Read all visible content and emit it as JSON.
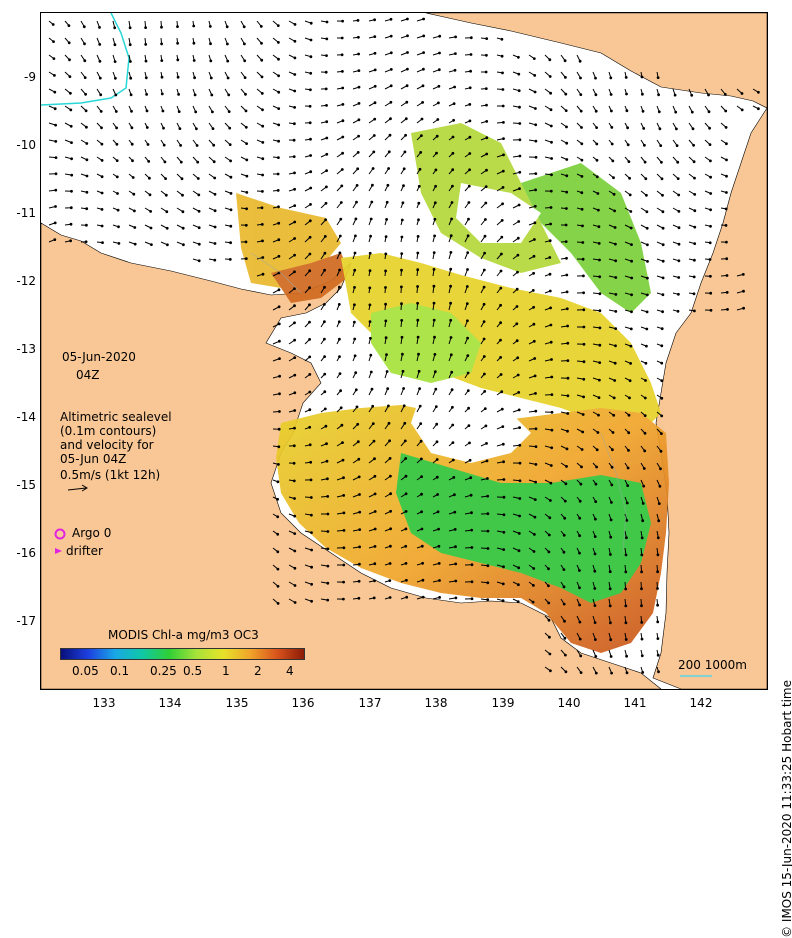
{
  "map": {
    "date": "05-Jun-2020",
    "time": "04Z",
    "legend_lines": [
      "Altimetric sealevel",
      "(0.1m contours)",
      "and velocity for",
      "05-Jun 04Z",
      "0.5m/s (1kt 12h)"
    ],
    "argo_label": "Argo 0",
    "drifter_label": "drifter",
    "colorbar_title": "MODIS Chl-a mg/m3 OC3",
    "colorbar_ticks": [
      "0.05",
      "0.1",
      "0.25",
      "0.5",
      "1",
      "2",
      "4"
    ],
    "scale_label": "200  1000m",
    "credit": "© IMOS 15-Jun-2020 11:33:25 Hobart time",
    "lat_ticks": [
      "-9",
      "-10",
      "-11",
      "-12",
      "-13",
      "-14",
      "-15",
      "-16",
      "-17"
    ],
    "lon_ticks": [
      "133",
      "134",
      "135",
      "136",
      "137",
      "138",
      "139",
      "140",
      "141",
      "142"
    ],
    "colors": {
      "land": "#f9c795",
      "chl_high": "#c8501a",
      "chl_mid": "#e8c41e",
      "chl_low": "#33c43a",
      "isobath": "#29d7d7",
      "argo": "#e024e0"
    }
  }
}
